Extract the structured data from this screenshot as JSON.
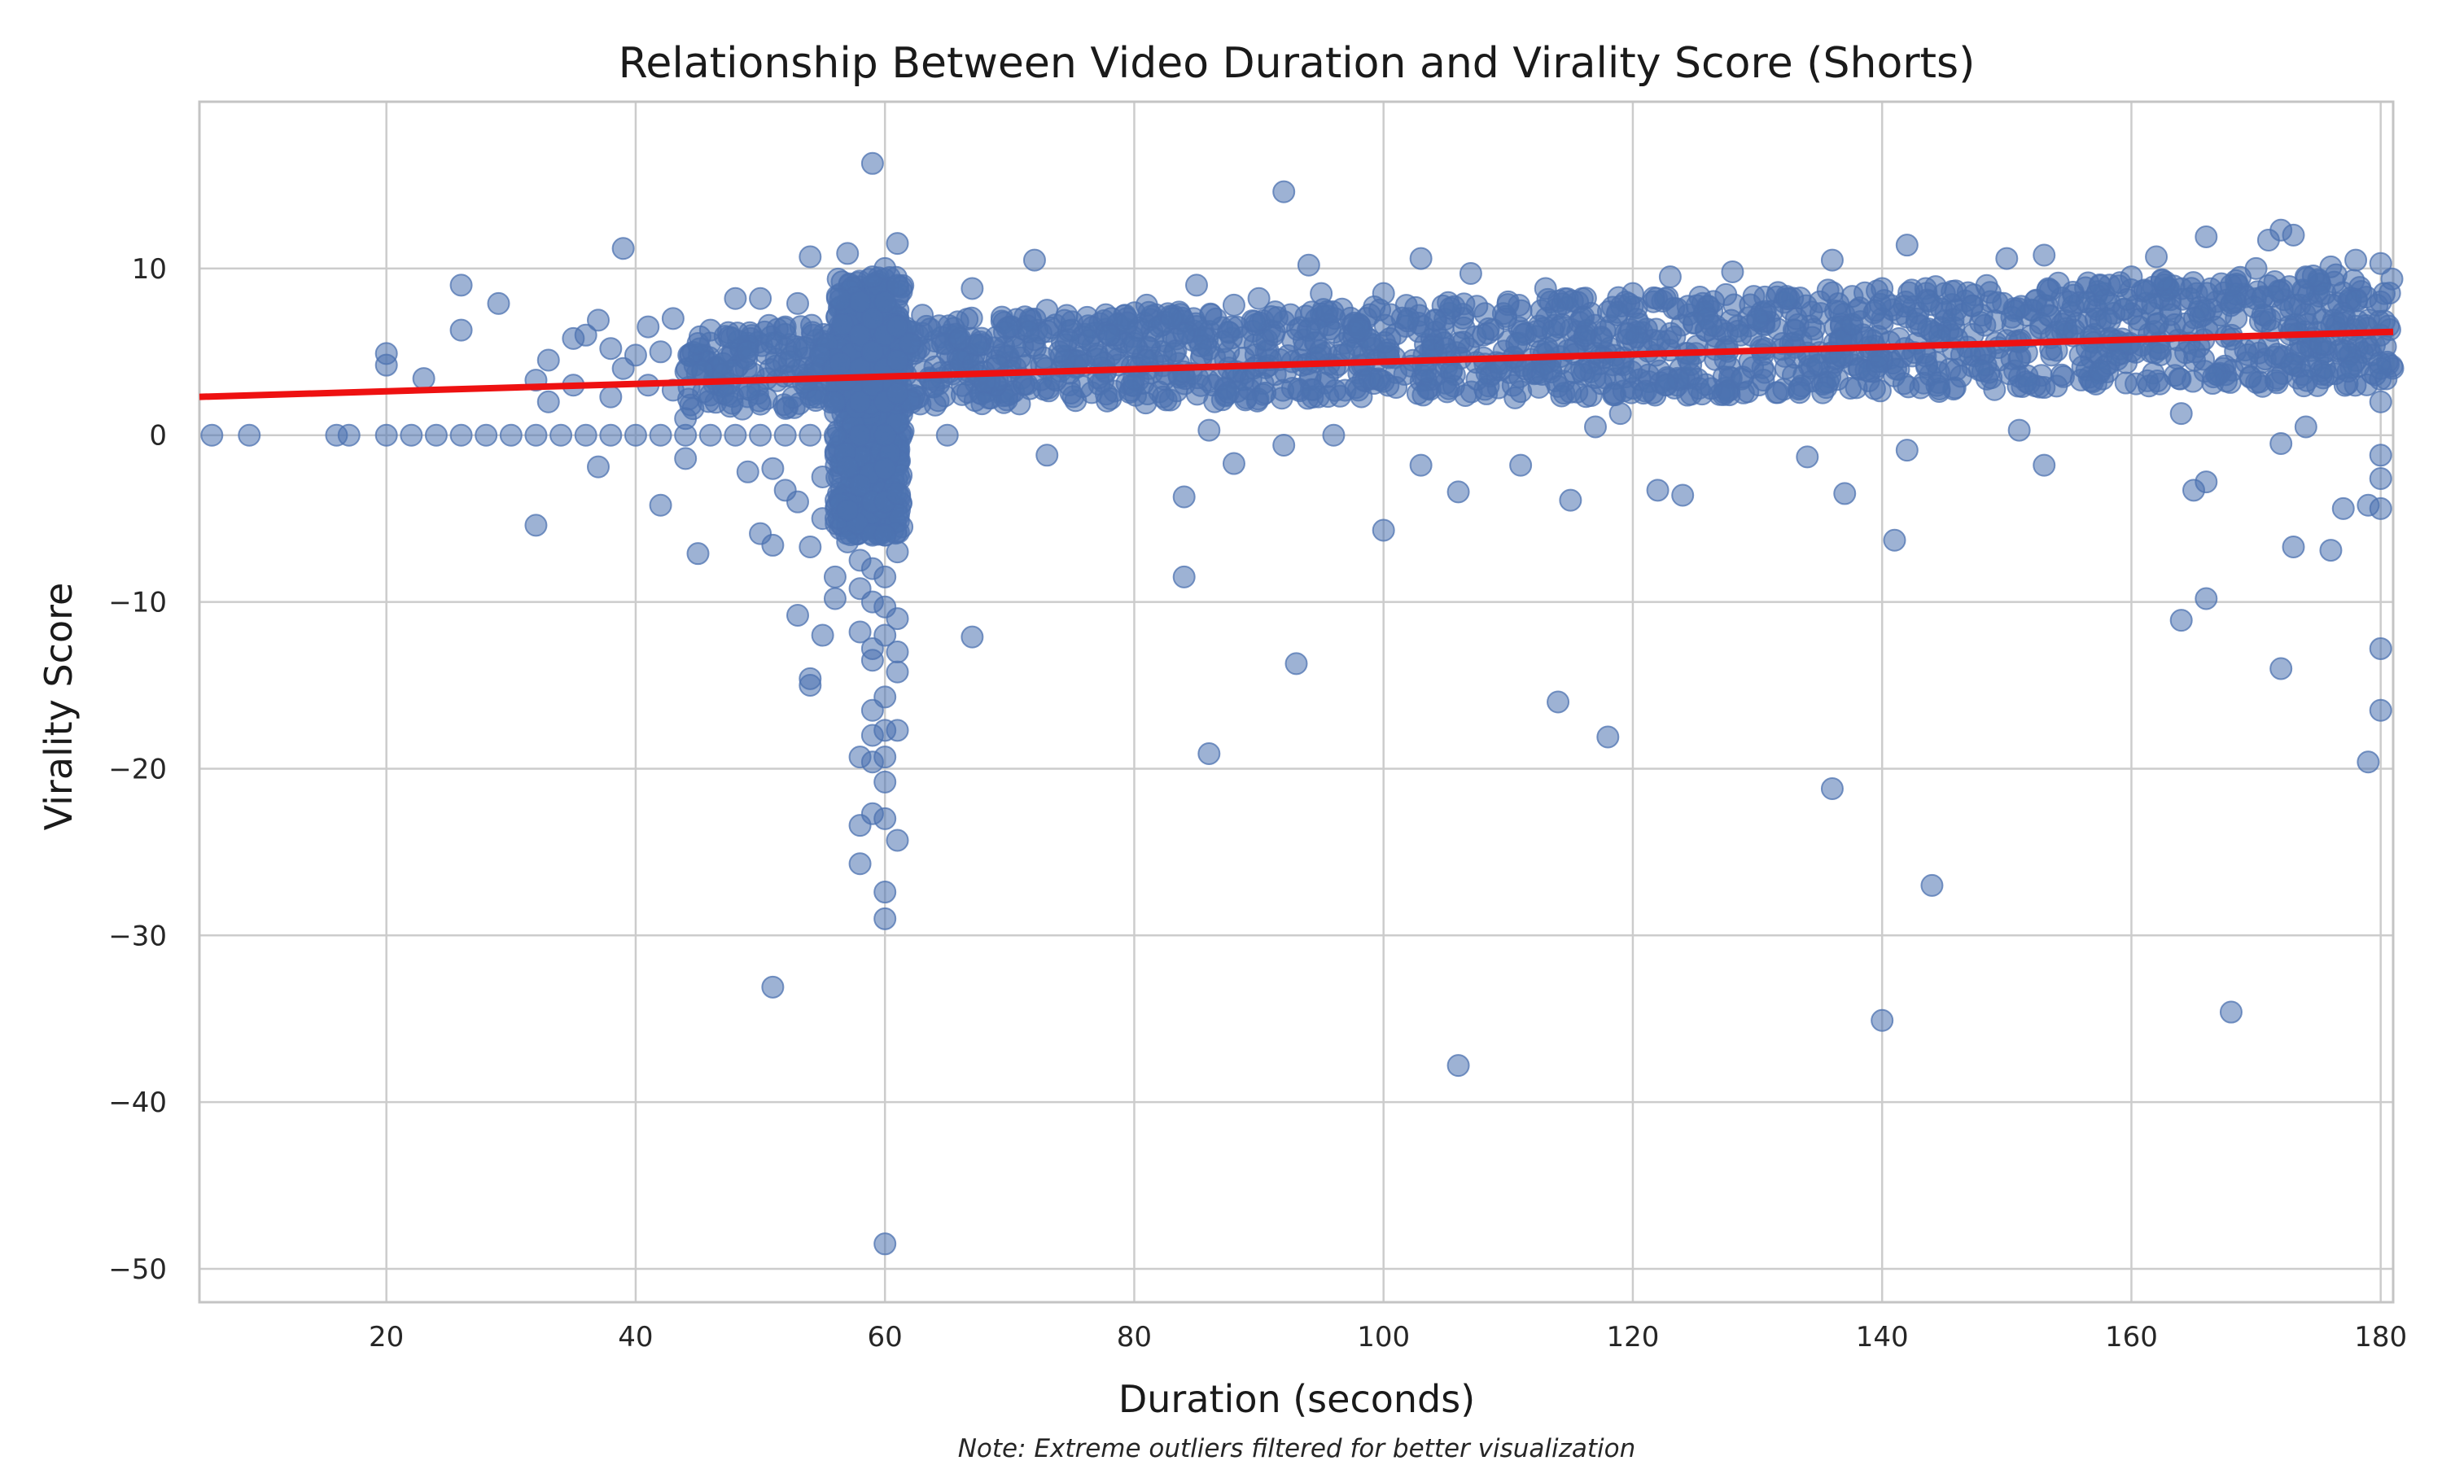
{
  "chart_data": {
    "type": "scatter",
    "title": "Relationship Between Video Duration and Virality Score (Shorts)",
    "xlabel": "Duration (seconds)",
    "ylabel": "Virality Score",
    "note": "Note: Extreme outliers filtered for better visualization",
    "xlim": [
      5,
      181
    ],
    "ylim": [
      -52,
      20
    ],
    "xticks": [
      20,
      40,
      60,
      80,
      100,
      120,
      140,
      160,
      180
    ],
    "yticks": [
      -50,
      -40,
      -30,
      -20,
      -10,
      0,
      10
    ],
    "xtick_labels": [
      "20",
      "40",
      "60",
      "80",
      "100",
      "120",
      "140",
      "160",
      "180"
    ],
    "ytick_labels": [
      "−50",
      "−40",
      "−30",
      "−20",
      "−10",
      "0",
      "10"
    ],
    "grid": true,
    "point_color": "#4c72b0",
    "point_opacity": 0.55,
    "regression_line": {
      "color": "#ee1111",
      "x": [
        5,
        181
      ],
      "y": [
        2.3,
        6.2
      ]
    },
    "series": [
      {
        "points": [
          [
            6,
            0
          ],
          [
            9,
            0
          ],
          [
            16,
            0
          ],
          [
            17,
            0
          ],
          [
            20,
            0
          ],
          [
            22,
            0
          ],
          [
            24,
            0
          ],
          [
            26,
            0
          ],
          [
            28,
            0
          ],
          [
            30,
            0
          ],
          [
            32,
            0
          ],
          [
            34,
            0
          ],
          [
            36,
            0
          ],
          [
            38,
            0
          ],
          [
            40,
            0
          ],
          [
            42,
            0
          ],
          [
            44,
            0
          ],
          [
            46,
            0
          ],
          [
            48,
            0
          ],
          [
            50,
            0
          ],
          [
            52,
            0
          ],
          [
            54,
            0
          ],
          [
            56,
            0
          ],
          [
            58,
            0
          ],
          [
            60,
            0
          ],
          [
            65,
            0
          ],
          [
            20,
            4.9
          ],
          [
            20,
            4.2
          ],
          [
            23,
            3.4
          ],
          [
            26,
            9.0
          ],
          [
            26,
            6.3
          ],
          [
            29,
            7.9
          ],
          [
            32,
            3.3
          ],
          [
            32,
            -5.4
          ],
          [
            33,
            4.5
          ],
          [
            33,
            2.0
          ],
          [
            35,
            5.8
          ],
          [
            35,
            3.0
          ],
          [
            36,
            6.0
          ],
          [
            37,
            6.9
          ],
          [
            37,
            -1.9
          ],
          [
            38,
            5.2
          ],
          [
            38,
            2.3
          ],
          [
            39,
            11.2
          ],
          [
            39,
            4.0
          ],
          [
            40,
            4.8
          ],
          [
            41,
            6.5
          ],
          [
            41,
            3.0
          ],
          [
            42,
            5.0
          ],
          [
            42,
            -4.2
          ],
          [
            43,
            7.0
          ],
          [
            43,
            2.7
          ],
          [
            44,
            -1.4
          ],
          [
            44,
            1.0
          ],
          [
            45,
            -7.1
          ],
          [
            45,
            5.5
          ],
          [
            46,
            6.3
          ],
          [
            47,
            4.3
          ],
          [
            48,
            8.2
          ],
          [
            49,
            5.0
          ],
          [
            49,
            -2.2
          ],
          [
            50,
            8.2
          ],
          [
            50,
            -5.9
          ],
          [
            51,
            -6.6
          ],
          [
            51,
            -2.0
          ],
          [
            51,
            -33.1
          ],
          [
            52,
            6.5
          ],
          [
            52,
            -3.3
          ],
          [
            53,
            7.9
          ],
          [
            53,
            -10.8
          ],
          [
            53,
            -4.0
          ],
          [
            54,
            10.7
          ],
          [
            54,
            -6.7
          ],
          [
            54,
            -14.6
          ],
          [
            54,
            -15.0
          ],
          [
            55,
            -5.0
          ],
          [
            55,
            -12.0
          ],
          [
            55,
            -2.5
          ],
          [
            56,
            -8.5
          ],
          [
            56,
            -9.8
          ],
          [
            57,
            10.9
          ],
          [
            57,
            -6.4
          ],
          [
            57,
            -4.5
          ],
          [
            58,
            8.0
          ],
          [
            58,
            6.0
          ],
          [
            58,
            4.0
          ],
          [
            58,
            2.0
          ],
          [
            58,
            -3.0
          ],
          [
            58,
            -7.5
          ],
          [
            58,
            -9.2
          ],
          [
            58,
            -11.8
          ],
          [
            58,
            -19.3
          ],
          [
            58,
            -23.4
          ],
          [
            58,
            -25.7
          ],
          [
            59,
            16.3
          ],
          [
            59,
            9.5
          ],
          [
            59,
            7.0
          ],
          [
            59,
            5.0
          ],
          [
            59,
            3.0
          ],
          [
            59,
            -4.0
          ],
          [
            59,
            -6.0
          ],
          [
            59,
            -8.0
          ],
          [
            59,
            -10.0
          ],
          [
            59,
            -12.8
          ],
          [
            59,
            -13.5
          ],
          [
            59,
            -16.5
          ],
          [
            59,
            -18.0
          ],
          [
            59,
            -19.6
          ],
          [
            59,
            -22.7
          ],
          [
            60,
            10.0
          ],
          [
            60,
            8.0
          ],
          [
            60,
            6.0
          ],
          [
            60,
            4.0
          ],
          [
            60,
            2.0
          ],
          [
            60,
            -2.0
          ],
          [
            60,
            -4.0
          ],
          [
            60,
            -6.0
          ],
          [
            60,
            -8.5
          ],
          [
            60,
            -10.3
          ],
          [
            60,
            -12.0
          ],
          [
            60,
            -15.7
          ],
          [
            60,
            -17.7
          ],
          [
            60,
            -19.3
          ],
          [
            60,
            -20.8
          ],
          [
            60,
            -23.0
          ],
          [
            60,
            -27.4
          ],
          [
            60,
            -29.0
          ],
          [
            60,
            -48.5
          ],
          [
            61,
            11.5
          ],
          [
            61,
            9.0
          ],
          [
            61,
            6.5
          ],
          [
            61,
            4.5
          ],
          [
            61,
            2.5
          ],
          [
            61,
            -3.5
          ],
          [
            61,
            -7.0
          ],
          [
            61,
            -11.0
          ],
          [
            61,
            -13.0
          ],
          [
            61,
            -14.2
          ],
          [
            61,
            -17.7
          ],
          [
            61,
            -24.3
          ],
          [
            62,
            5.5
          ],
          [
            63,
            7.2
          ],
          [
            64,
            4.1
          ],
          [
            66,
            5.8
          ],
          [
            67,
            8.8
          ],
          [
            67,
            -12.1
          ],
          [
            68,
            3.2
          ],
          [
            70,
            6.5
          ],
          [
            72,
            10.5
          ],
          [
            73,
            7.5
          ],
          [
            73,
            -1.2
          ],
          [
            74,
            5.0
          ],
          [
            75,
            6.8
          ],
          [
            76,
            4.2
          ],
          [
            78,
            6.0
          ],
          [
            80,
            5.5
          ],
          [
            81,
            7.8
          ],
          [
            83,
            7.0
          ],
          [
            84,
            -3.7
          ],
          [
            84,
            -8.5
          ],
          [
            85,
            9.0
          ],
          [
            86,
            -19.1
          ],
          [
            86,
            0.3
          ],
          [
            88,
            7.8
          ],
          [
            88,
            -1.7
          ],
          [
            90,
            8.2
          ],
          [
            92,
            14.6
          ],
          [
            92,
            -0.6
          ],
          [
            93,
            -13.7
          ],
          [
            94,
            10.2
          ],
          [
            95,
            8.5
          ],
          [
            96,
            0.0
          ],
          [
            98,
            6.4
          ],
          [
            100,
            8.5
          ],
          [
            100,
            -5.7
          ],
          [
            102,
            7.0
          ],
          [
            103,
            10.6
          ],
          [
            103,
            -1.8
          ],
          [
            105,
            5.2
          ],
          [
            106,
            -3.4
          ],
          [
            106,
            -37.8
          ],
          [
            107,
            9.7
          ],
          [
            108,
            6.0
          ],
          [
            110,
            8.0
          ],
          [
            111,
            -1.8
          ],
          [
            113,
            8.8
          ],
          [
            114,
            -16.0
          ],
          [
            115,
            -3.9
          ],
          [
            117,
            0.5
          ],
          [
            118,
            -18.1
          ],
          [
            119,
            1.3
          ],
          [
            120,
            8.5
          ],
          [
            122,
            -3.3
          ],
          [
            123,
            9.5
          ],
          [
            124,
            -3.6
          ],
          [
            126,
            7.0
          ],
          [
            128,
            9.8
          ],
          [
            130,
            7.0
          ],
          [
            132,
            5.5
          ],
          [
            134,
            -1.3
          ],
          [
            135,
            8.0
          ],
          [
            136,
            10.5
          ],
          [
            136,
            -21.2
          ],
          [
            137,
            -3.5
          ],
          [
            138,
            7.5
          ],
          [
            140,
            8.8
          ],
          [
            140,
            -35.1
          ],
          [
            141,
            -6.3
          ],
          [
            142,
            11.4
          ],
          [
            142,
            -0.9
          ],
          [
            144,
            -27.0
          ],
          [
            145,
            8.5
          ],
          [
            148,
            7.2
          ],
          [
            150,
            10.6
          ],
          [
            151,
            0.3
          ],
          [
            153,
            10.8
          ],
          [
            153,
            -1.8
          ],
          [
            155,
            8.0
          ],
          [
            158,
            7.0
          ],
          [
            160,
            9.5
          ],
          [
            162,
            10.7
          ],
          [
            164,
            1.3
          ],
          [
            164,
            -11.1
          ],
          [
            165,
            -3.3
          ],
          [
            166,
            11.9
          ],
          [
            166,
            -2.8
          ],
          [
            166,
            -9.8
          ],
          [
            168,
            9.0
          ],
          [
            168,
            -34.6
          ],
          [
            170,
            10.0
          ],
          [
            171,
            11.7
          ],
          [
            172,
            12.3
          ],
          [
            172,
            -14.0
          ],
          [
            172,
            -0.5
          ],
          [
            173,
            12.0
          ],
          [
            173,
            -6.7
          ],
          [
            174,
            9.5
          ],
          [
            174,
            0.5
          ],
          [
            176,
            -6.9
          ],
          [
            176,
            10.1
          ],
          [
            177,
            -4.4
          ],
          [
            178,
            10.5
          ],
          [
            179,
            -19.6
          ],
          [
            179,
            -4.2
          ],
          [
            180,
            10.3
          ],
          [
            180,
            8.0
          ],
          [
            180,
            6.0
          ],
          [
            180,
            4.0
          ],
          [
            180,
            2.0
          ],
          [
            180,
            -1.2
          ],
          [
            180,
            -2.6
          ],
          [
            180,
            -4.4
          ],
          [
            180,
            -12.8
          ],
          [
            180,
            -16.5
          ]
        ]
      }
    ],
    "dense_band": {
      "x": [
        44,
        181
      ],
      "y_at_start": [
        1.5,
        6.5
      ],
      "y_at_end": [
        3.0,
        9.8
      ],
      "count": 1700
    },
    "dense_column": {
      "x": [
        56,
        61.5
      ],
      "y": [
        -6,
        9.5
      ],
      "count": 600
    }
  }
}
